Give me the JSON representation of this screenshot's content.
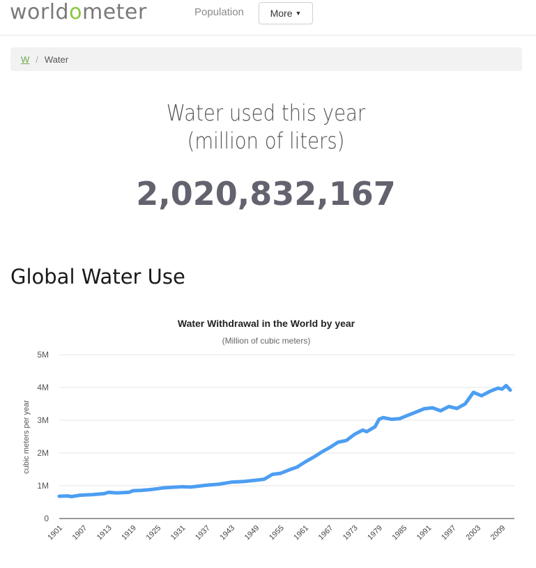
{
  "header": {
    "logo_prefix": "world",
    "logo_o": "o",
    "logo_suffix": "meter",
    "nav_population": "Population",
    "more_label": "More",
    "more_caret_icon": "caret-down-icon"
  },
  "breadcrumb": {
    "home": "W",
    "separator": "/",
    "current": "Water"
  },
  "counter": {
    "title_line1": "Water used this year",
    "title_line2": "(million of liters)",
    "value": "2,020,832,167"
  },
  "section": {
    "title": "Global Water Use"
  },
  "colors": {
    "accent": "#8cc63f",
    "series": "#4d9ef2",
    "breadcrumb_link": "#6aa84f"
  },
  "chart_data": {
    "type": "line",
    "title": "Water Withdrawal in the World by year",
    "subtitle": "(Million of cubic meters)",
    "ylabel": "cubic meters per year",
    "xlabel": "",
    "ylim": [
      0,
      5000000
    ],
    "yticks": [
      0,
      1000000,
      2000000,
      3000000,
      4000000,
      5000000
    ],
    "ytick_labels": [
      "0",
      "1M",
      "2M",
      "3M",
      "4M",
      "5M"
    ],
    "xticks": [
      "1901",
      "1907",
      "1913",
      "1919",
      "1925",
      "1931",
      "1937",
      "1943",
      "1949",
      "1955",
      "1961",
      "1967",
      "1973",
      "1979",
      "1985",
      "1991",
      "1997",
      "2003",
      "2009"
    ],
    "xlim": [
      1901,
      2012
    ],
    "grid": true,
    "series": [
      {
        "x": [
          1901,
          1903,
          1904,
          1906,
          1909,
          1912,
          1913,
          1915,
          1918,
          1919,
          1921,
          1923,
          1925,
          1926,
          1928,
          1931,
          1933,
          1935,
          1937,
          1940,
          1943,
          1946,
          1949,
          1951,
          1953,
          1955,
          1957,
          1959,
          1961,
          1963,
          1965,
          1967,
          1969,
          1971,
          1973,
          1975,
          1976,
          1978,
          1979,
          1980,
          1982,
          1984,
          1986,
          1988,
          1990,
          1992,
          1994,
          1996,
          1998,
          2000,
          2002,
          2004,
          2006,
          2008,
          2009,
          2010,
          2011
        ],
        "y": [
          680000,
          690000,
          670000,
          710000,
          730000,
          760000,
          800000,
          780000,
          800000,
          850000,
          860000,
          880000,
          910000,
          930000,
          950000,
          970000,
          960000,
          990000,
          1020000,
          1050000,
          1110000,
          1130000,
          1170000,
          1200000,
          1350000,
          1380000,
          1480000,
          1570000,
          1730000,
          1870000,
          2030000,
          2170000,
          2330000,
          2380000,
          2570000,
          2700000,
          2650000,
          2800000,
          3030000,
          3080000,
          3030000,
          3050000,
          3150000,
          3250000,
          3350000,
          3380000,
          3290000,
          3420000,
          3360000,
          3500000,
          3850000,
          3750000,
          3880000,
          3980000,
          3950000,
          4060000,
          3920000
        ]
      }
    ]
  }
}
